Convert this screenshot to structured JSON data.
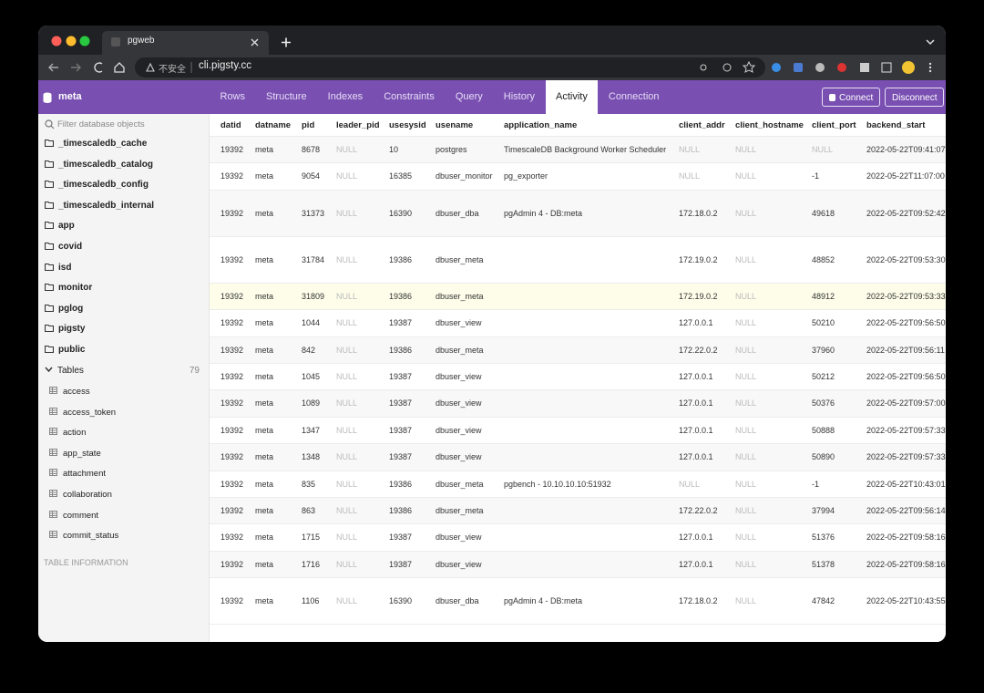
{
  "browser": {
    "tab_title": "pgweb",
    "security": "不安全",
    "url": "cli.pigsty.cc"
  },
  "app": {
    "database": "meta",
    "tabs": [
      "Rows",
      "Structure",
      "Indexes",
      "Constraints",
      "Query",
      "History",
      "Activity",
      "Connection"
    ],
    "active_tab": "Activity",
    "buttons": [
      "Connect",
      "Disconnect"
    ]
  },
  "sidebar": {
    "filter_placeholder": "Filter database objects",
    "schemas": [
      "_timescaledb_cache",
      "_timescaledb_catalog",
      "_timescaledb_config",
      "_timescaledb_internal",
      "app",
      "covid",
      "isd",
      "monitor",
      "pglog",
      "pigsty",
      "public"
    ],
    "tables_label": "Tables",
    "tables_count": "79",
    "tables": [
      "access",
      "access_token",
      "action",
      "app_state",
      "attachment",
      "collaboration",
      "comment",
      "commit_status"
    ],
    "footer": "TABLE INFORMATION"
  },
  "table": {
    "columns": [
      "datid",
      "datname",
      "pid",
      "leader_pid",
      "usesysid",
      "usename",
      "application_name",
      "client_addr",
      "client_hostname",
      "client_port",
      "backend_start"
    ],
    "rows": [
      [
        "19392",
        "meta",
        "8678",
        "NULL",
        "10",
        "postgres",
        "TimescaleDB Background Worker Scheduler",
        "NULL",
        "NULL",
        "NULL",
        "2022-05-22T09:41:07"
      ],
      [
        "19392",
        "meta",
        "9054",
        "NULL",
        "16385",
        "dbuser_monitor",
        "pg_exporter",
        "NULL",
        "NULL",
        "-1",
        "2022-05-22T11:07:00"
      ],
      [
        "19392",
        "meta",
        "31373",
        "NULL",
        "16390",
        "dbuser_dba",
        "pgAdmin 4 - DB:meta",
        "172.18.0.2",
        "NULL",
        "49618",
        "2022-05-22T09:52:42"
      ],
      [
        "19392",
        "meta",
        "31784",
        "NULL",
        "19386",
        "dbuser_meta",
        null,
        "172.19.0.2",
        "NULL",
        "48852",
        "2022-05-22T09:53:30"
      ],
      [
        "19392",
        "meta",
        "31809",
        "NULL",
        "19386",
        "dbuser_meta",
        null,
        "172.19.0.2",
        "NULL",
        "48912",
        "2022-05-22T09:53:33"
      ],
      [
        "19392",
        "meta",
        "1044",
        "NULL",
        "19387",
        "dbuser_view",
        null,
        "127.0.0.1",
        "NULL",
        "50210",
        "2022-05-22T09:56:50"
      ],
      [
        "19392",
        "meta",
        "842",
        "NULL",
        "19386",
        "dbuser_meta",
        null,
        "172.22.0.2",
        "NULL",
        "37960",
        "2022-05-22T09:56:11"
      ],
      [
        "19392",
        "meta",
        "1045",
        "NULL",
        "19387",
        "dbuser_view",
        null,
        "127.0.0.1",
        "NULL",
        "50212",
        "2022-05-22T09:56:50"
      ],
      [
        "19392",
        "meta",
        "1089",
        "NULL",
        "19387",
        "dbuser_view",
        null,
        "127.0.0.1",
        "NULL",
        "50376",
        "2022-05-22T09:57:00"
      ],
      [
        "19392",
        "meta",
        "1347",
        "NULL",
        "19387",
        "dbuser_view",
        null,
        "127.0.0.1",
        "NULL",
        "50888",
        "2022-05-22T09:57:33"
      ],
      [
        "19392",
        "meta",
        "1348",
        "NULL",
        "19387",
        "dbuser_view",
        null,
        "127.0.0.1",
        "NULL",
        "50890",
        "2022-05-22T09:57:33"
      ],
      [
        "19392",
        "meta",
        "835",
        "NULL",
        "19386",
        "dbuser_meta",
        "pgbench - 10.10.10.10:51932",
        "NULL",
        "NULL",
        "-1",
        "2022-05-22T10:43:01"
      ],
      [
        "19392",
        "meta",
        "863",
        "NULL",
        "19386",
        "dbuser_meta",
        null,
        "172.22.0.2",
        "NULL",
        "37994",
        "2022-05-22T09:56:14"
      ],
      [
        "19392",
        "meta",
        "1715",
        "NULL",
        "19387",
        "dbuser_view",
        null,
        "127.0.0.1",
        "NULL",
        "51376",
        "2022-05-22T09:58:16"
      ],
      [
        "19392",
        "meta",
        "1716",
        "NULL",
        "19387",
        "dbuser_view",
        null,
        "127.0.0.1",
        "NULL",
        "51378",
        "2022-05-22T09:58:16"
      ],
      [
        "19392",
        "meta",
        "1106",
        "NULL",
        "16390",
        "dbuser_dba",
        "pgAdmin 4 - DB:meta",
        "172.18.0.2",
        "NULL",
        "47842",
        "2022-05-22T10:43:55"
      ]
    ]
  }
}
